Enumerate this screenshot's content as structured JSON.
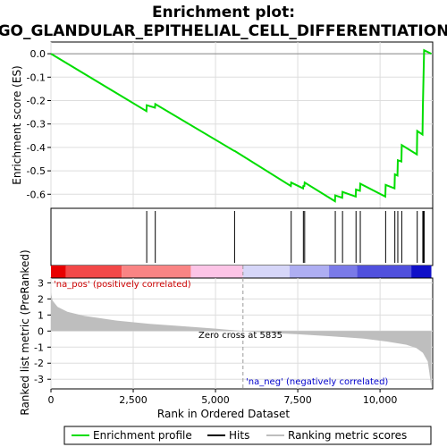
{
  "chart_data": {
    "type": "line",
    "title_line1": "Enrichment plot:",
    "title_line2": "GO_GLANDULAR_EPITHELIAL_CELL_DIFFERENTIATION",
    "top_ylabel": "Enrichment score (ES)",
    "bottom_ylabel": "Ranked list metric (PreRanked)",
    "xlabel": "Rank in Ordered Dataset",
    "x_ticks": [
      0,
      2500,
      5000,
      7500,
      10000
    ],
    "x_tick_labels": [
      "0",
      "2,500",
      "5,000",
      "7,500",
      "10,000"
    ],
    "xlim": [
      0,
      11600
    ],
    "es_ylim": [
      -0.66,
      0.05
    ],
    "es_ticks": [
      0.0,
      -0.1,
      -0.2,
      -0.3,
      -0.4,
      -0.5,
      -0.6
    ],
    "es_tick_labels": [
      "0.0",
      "-0.1",
      "-0.2",
      "-0.3",
      "-0.4",
      "-0.5",
      "-0.6"
    ],
    "metric_ylim": [
      -3.6,
      3.3
    ],
    "metric_ticks": [
      3,
      2,
      1,
      0,
      -1,
      -2,
      -3
    ],
    "metric_tick_labels": [
      "3",
      "2",
      "1",
      "0",
      "-1",
      "-2",
      "-3"
    ],
    "hits": [
      2910,
      3170,
      5580,
      7300,
      7670,
      7710,
      8640,
      8860,
      9270,
      9400,
      10170,
      10450,
      10540,
      10660,
      11130,
      11300,
      11320,
      11340
    ],
    "es_profile": {
      "x": [
        0,
        2900,
        2910,
        3160,
        3170,
        5570,
        5580,
        7290,
        7300,
        7660,
        7670,
        7700,
        7710,
        8630,
        8640,
        8850,
        8860,
        9260,
        9270,
        9390,
        9400,
        10160,
        10170,
        10440,
        10450,
        10530,
        10540,
        10650,
        10660,
        11120,
        11130,
        11290,
        11300,
        11320,
        11340,
        11560
      ],
      "y": [
        0.0,
        -0.245,
        -0.22,
        -0.23,
        -0.215,
        -0.415,
        -0.415,
        -0.565,
        -0.55,
        -0.575,
        -0.565,
        -0.565,
        -0.55,
        -0.63,
        -0.605,
        -0.615,
        -0.59,
        -0.61,
        -0.58,
        -0.585,
        -0.555,
        -0.61,
        -0.56,
        -0.575,
        -0.515,
        -0.52,
        -0.455,
        -0.46,
        -0.39,
        -0.43,
        -0.33,
        -0.345,
        -0.23,
        -0.105,
        0.015,
        0.0
      ]
    },
    "metric_profile": {
      "x": [
        0,
        50,
        200,
        500,
        1000,
        2000,
        3000,
        4000,
        5000,
        5835,
        6500,
        7500,
        8500,
        9500,
        10200,
        10800,
        11100,
        11300,
        11450,
        11500,
        11560
      ],
      "y": [
        2.4,
        1.9,
        1.5,
        1.2,
        0.95,
        0.65,
        0.45,
        0.3,
        0.15,
        0.0,
        -0.1,
        -0.2,
        -0.32,
        -0.47,
        -0.65,
        -0.85,
        -1.05,
        -1.35,
        -1.9,
        -2.6,
        -3.5
      ]
    },
    "rank_bar": [
      {
        "x0": 0,
        "x1": 450,
        "color": "#e80000"
      },
      {
        "x0": 450,
        "x1": 2150,
        "color": "#f24848"
      },
      {
        "x0": 2150,
        "x1": 4250,
        "color": "#f98484"
      },
      {
        "x0": 4250,
        "x1": 5835,
        "color": "#fcc4e6"
      },
      {
        "x0": 5835,
        "x1": 7250,
        "color": "#d6d6f8"
      },
      {
        "x0": 7250,
        "x1": 8450,
        "color": "#aeaef2"
      },
      {
        "x0": 8450,
        "x1": 9300,
        "color": "#7a7ae8"
      },
      {
        "x0": 9300,
        "x1": 10950,
        "color": "#5050dd"
      },
      {
        "x0": 10950,
        "x1": 11560,
        "color": "#1010c8"
      }
    ],
    "annotation_pos": "'na_pos' (positively correlated)",
    "annotation_neg": "'na_neg' (negatively correlated)",
    "zero_cross_label": "Zero cross at 5835",
    "zero_cross": 5835,
    "colors": {
      "es_line": "#00dd00",
      "hit_line": "#000000",
      "metric_fill": "#bebebe",
      "pos_text": "#cc0000",
      "neg_text": "#0000cc",
      "grid": "#dddddd"
    },
    "legend": {
      "items": [
        {
          "label": "Enrichment profile",
          "icon": "green-line"
        },
        {
          "label": "Hits",
          "icon": "black-line"
        },
        {
          "label": "Ranking metric scores",
          "icon": "gray-line"
        }
      ]
    }
  }
}
